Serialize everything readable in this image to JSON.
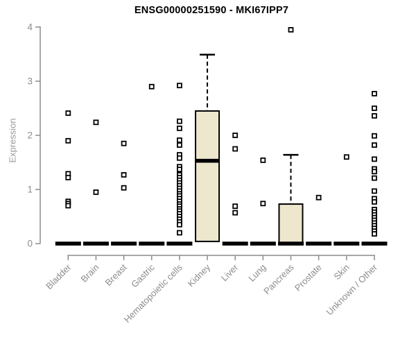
{
  "chart_data": {
    "type": "box",
    "title": "ENSG00000251590 - MKI67IPP7",
    "ylabel": "Expression",
    "xlabel": "",
    "ylim": [
      0,
      4
    ],
    "yticks": [
      0,
      1,
      2,
      3,
      4
    ],
    "grid": false,
    "legend": false,
    "categories": [
      "Bladder",
      "Brain",
      "Breast",
      "Gastric",
      "Hematopoietic cells",
      "Kidney",
      "Liver",
      "Lung",
      "Pancreas",
      "Prostate",
      "Skin",
      "Unknown / Other"
    ],
    "boxes": [
      {
        "category": "Bladder",
        "median": 0,
        "q1": 0,
        "q3": 0,
        "whisker_low": 0,
        "whisker_high": 0,
        "outliers": [
          2.41,
          1.9,
          1.29,
          1.22,
          0.78,
          0.74,
          0.7
        ]
      },
      {
        "category": "Brain",
        "median": 0,
        "q1": 0,
        "q3": 0,
        "whisker_low": 0,
        "whisker_high": 0,
        "outliers": [
          2.24,
          0.95
        ]
      },
      {
        "category": "Breast",
        "median": 0,
        "q1": 0,
        "q3": 0,
        "whisker_low": 0,
        "whisker_high": 0,
        "outliers": [
          1.85,
          1.27,
          1.03
        ]
      },
      {
        "category": "Gastric",
        "median": 0,
        "q1": 0,
        "q3": 0,
        "whisker_low": 0,
        "whisker_high": 0,
        "outliers": [
          2.9
        ]
      },
      {
        "category": "Hematopoietic cells",
        "median": 0,
        "q1": 0,
        "q3": 0,
        "whisker_low": 0,
        "whisker_high": 0,
        "outliers": [
          2.92,
          2.26,
          2.13,
          1.91,
          1.82,
          1.64,
          1.58,
          1.42,
          1.37,
          1.27,
          1.22,
          1.17,
          1.12,
          1.07,
          1.02,
          0.97,
          0.92,
          0.88,
          0.83,
          0.78,
          0.73,
          0.69,
          0.64,
          0.6,
          0.55,
          0.5,
          0.45,
          0.4,
          0.35,
          0.2
        ]
      },
      {
        "category": "Kidney",
        "median": 1.53,
        "q1": 0.04,
        "q3": 2.45,
        "whisker_low": 0.04,
        "whisker_high": 3.49,
        "outliers": []
      },
      {
        "category": "Liver",
        "median": 0,
        "q1": 0,
        "q3": 0,
        "whisker_low": 0,
        "whisker_high": 0,
        "outliers": [
          2.0,
          1.75,
          0.69,
          0.57
        ]
      },
      {
        "category": "Lung",
        "median": 0,
        "q1": 0,
        "q3": 0,
        "whisker_low": 0,
        "whisker_high": 0,
        "outliers": [
          1.54,
          0.74
        ]
      },
      {
        "category": "Pancreas",
        "median": 0,
        "q1": 0,
        "q3": 0.73,
        "whisker_low": 0,
        "whisker_high": 1.64,
        "outliers": [
          3.95
        ]
      },
      {
        "category": "Prostate",
        "median": 0,
        "q1": 0,
        "q3": 0,
        "whisker_low": 0,
        "whisker_high": 0,
        "outliers": [
          0.85
        ]
      },
      {
        "category": "Skin",
        "median": 0,
        "q1": 0,
        "q3": 0,
        "whisker_low": 0,
        "whisker_high": 0,
        "outliers": [
          1.6
        ]
      },
      {
        "category": "Unknown / Other",
        "median": 0,
        "q1": 0,
        "q3": 0,
        "whisker_low": 0,
        "whisker_high": 0,
        "outliers": [
          2.77,
          2.5,
          2.36,
          1.99,
          1.82,
          1.56,
          1.38,
          1.33,
          1.21,
          0.97,
          0.83,
          0.77,
          0.63,
          0.58,
          0.53,
          0.48,
          0.43,
          0.38,
          0.33,
          0.28,
          0.23,
          0.18
        ]
      }
    ],
    "colors": {
      "box_fill": "#EDE7CE",
      "box_stroke": "#000000",
      "median_color": "#000000",
      "outlier_color": "#000000",
      "axis_color": "#8c8c8c",
      "tick_label_color": "#8c8c8c",
      "title_color": "#000000",
      "background": "#ffffff"
    }
  }
}
